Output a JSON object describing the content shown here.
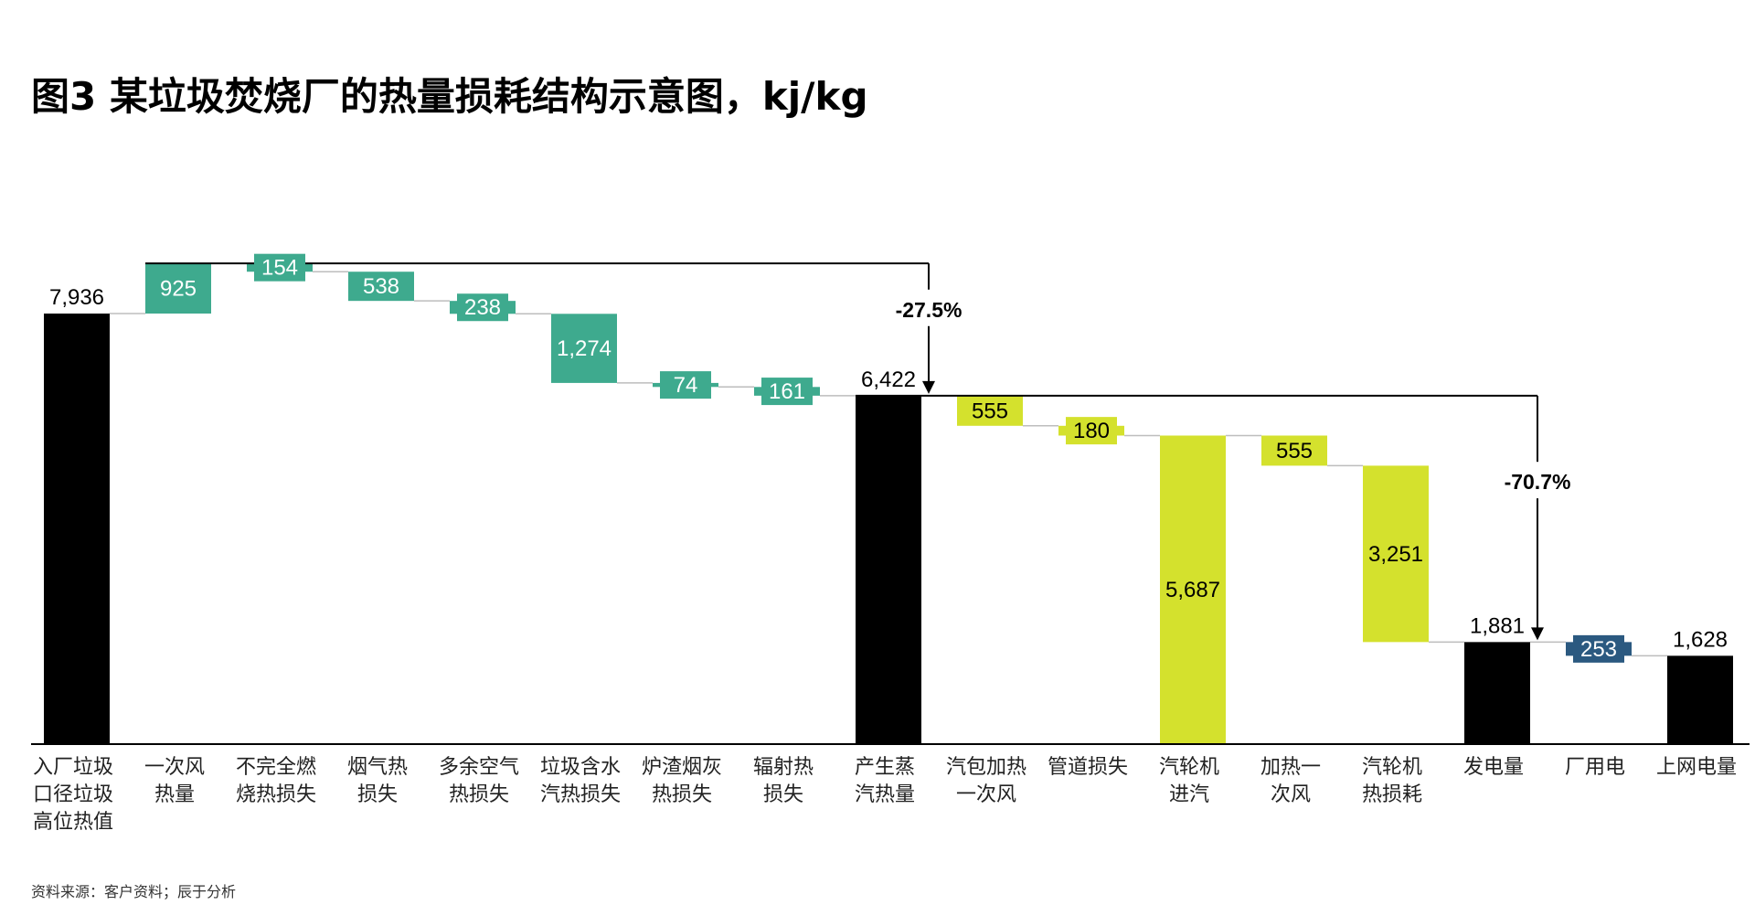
{
  "title": "图3 某垃圾焚烧厂的热量损耗结构示意图，kj/kg",
  "source": "资料来源：客户资料；辰于分析",
  "colors": {
    "total": "#000000",
    "boiler_loss": "#3EAA8E",
    "turbine_loss": "#D4E12D",
    "aux_loss": "#2B5980",
    "text_light": "#ffffff",
    "text_dark": "#000000"
  },
  "chart_data": {
    "type": "bar",
    "subtype": "waterfall",
    "ylim": [
      0,
      7936
    ],
    "categories": [
      [
        "入厂垃圾",
        "口径垃圾",
        "高位热值"
      ],
      [
        "一次风",
        "热量"
      ],
      [
        "不完全燃",
        "烧热损失"
      ],
      [
        "烟气热",
        "损失"
      ],
      [
        "多余空气",
        "热损失"
      ],
      [
        "垃圾含水",
        "汽热损失"
      ],
      [
        "炉渣烟灰",
        "热损失"
      ],
      [
        "辐射热",
        "损失"
      ],
      [
        "产生蒸",
        "汽热量"
      ],
      [
        "汽包加热",
        "一次风"
      ],
      [
        "管道损失"
      ],
      [
        "汽轮机",
        "进汽"
      ],
      [
        "加热一",
        "次风"
      ],
      [
        "汽轮机",
        "热损耗"
      ],
      [
        "发电量"
      ],
      [
        "厂用电"
      ],
      [
        "上网电量"
      ]
    ],
    "bars": [
      {
        "label": "7,936",
        "kind": "total",
        "color_key": "total",
        "start": 0,
        "end": 7936
      },
      {
        "label": "925",
        "kind": "delta",
        "color_key": "boiler_loss",
        "start": 7936,
        "end": 8861
      },
      {
        "label": "154",
        "kind": "delta",
        "color_key": "boiler_loss",
        "start": 8861,
        "end": 8707
      },
      {
        "label": "538",
        "kind": "delta",
        "color_key": "boiler_loss",
        "start": 8707,
        "end": 8169
      },
      {
        "label": "238",
        "kind": "delta",
        "color_key": "boiler_loss",
        "start": 8169,
        "end": 7931
      },
      {
        "label": "1,274",
        "kind": "delta",
        "color_key": "boiler_loss",
        "start": 7931,
        "end": 6657
      },
      {
        "label": "74",
        "kind": "delta",
        "color_key": "boiler_loss",
        "start": 6657,
        "end": 6583
      },
      {
        "label": "161",
        "kind": "delta",
        "color_key": "boiler_loss",
        "start": 6583,
        "end": 6422
      },
      {
        "label": "6,422",
        "kind": "total",
        "color_key": "total",
        "start": 0,
        "end": 6422
      },
      {
        "label": "555",
        "kind": "delta",
        "color_key": "turbine_loss",
        "start": 6422,
        "end": 5867
      },
      {
        "label": "180",
        "kind": "delta",
        "color_key": "turbine_loss",
        "start": 5867,
        "end": 5687
      },
      {
        "label": "5,687",
        "kind": "total",
        "color_key": "turbine_loss",
        "start": 0,
        "end": 5687
      },
      {
        "label": "555",
        "kind": "delta",
        "color_key": "turbine_loss",
        "start": 5687,
        "end": 5132
      },
      {
        "label": "3,251",
        "kind": "delta",
        "color_key": "turbine_loss",
        "start": 5132,
        "end": 1881
      },
      {
        "label": "1,881",
        "kind": "total",
        "color_key": "total",
        "start": 0,
        "end": 1881
      },
      {
        "label": "253",
        "kind": "delta",
        "color_key": "aux_loss",
        "start": 1881,
        "end": 1628
      },
      {
        "label": "1,628",
        "kind": "total",
        "color_key": "total",
        "start": 0,
        "end": 1628
      }
    ],
    "annotations": [
      {
        "text": "-27.5%",
        "from_bar": 1,
        "to_bar": 8,
        "from_value": 8861,
        "to_value": 6422
      },
      {
        "text": "-70.7%",
        "from_bar": 8,
        "to_bar": 14,
        "from_value": 6422,
        "to_value": 1881
      }
    ]
  }
}
